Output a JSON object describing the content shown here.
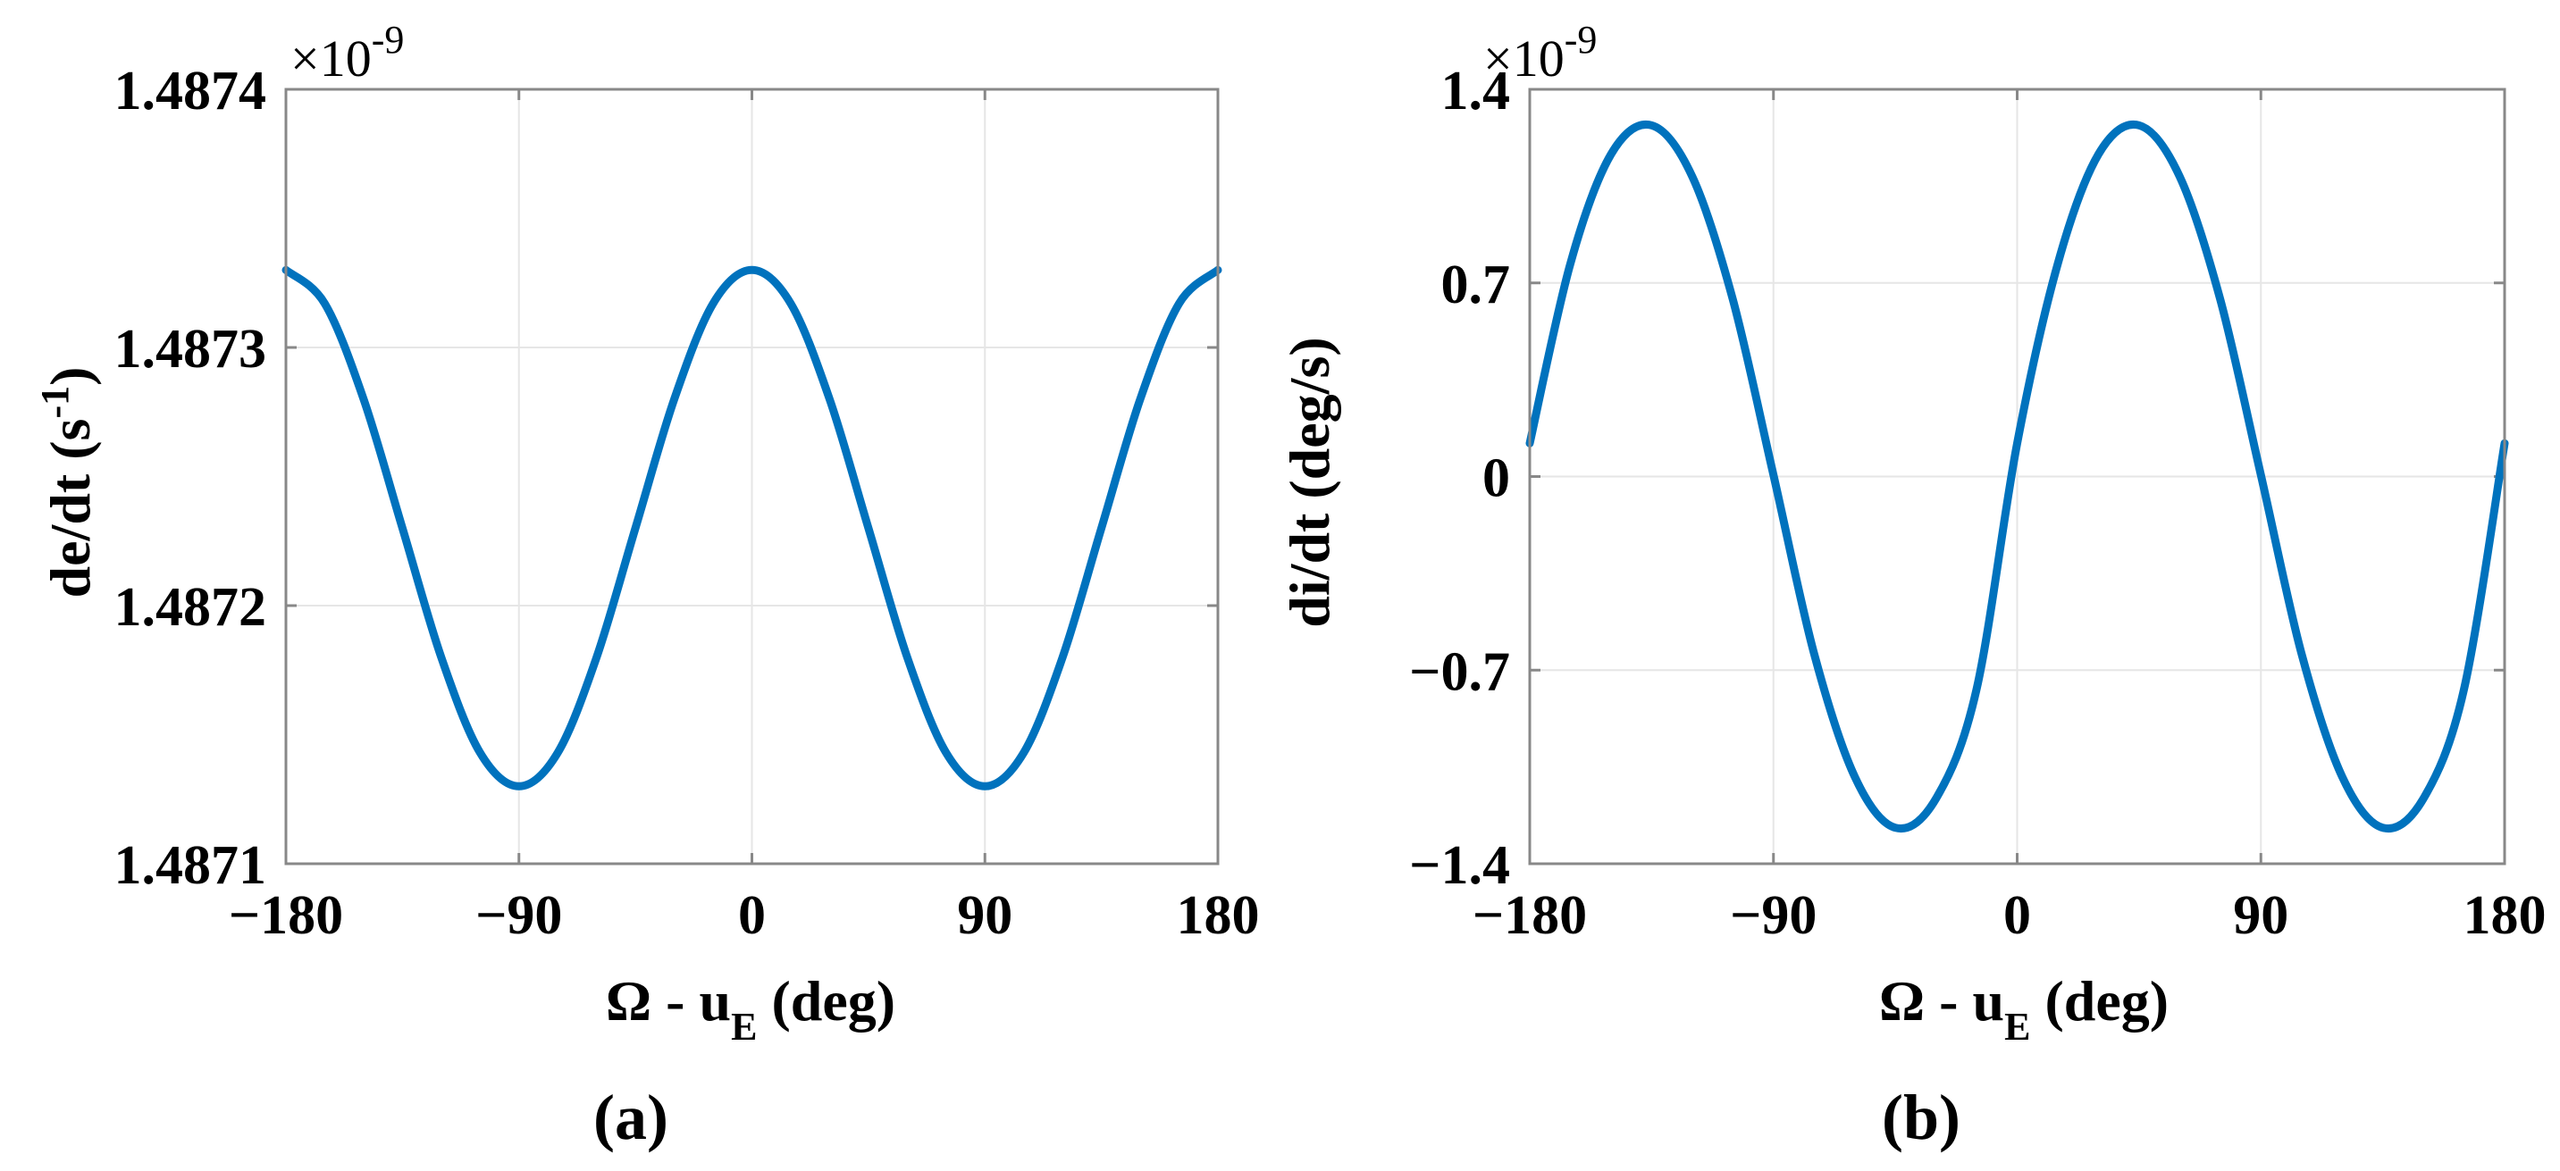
{
  "chart_data": [
    {
      "id": "a",
      "type": "line",
      "panel_label": "(a)",
      "ylabel_main": "de/dt (s",
      "ylabel_sup": "-1",
      "ylabel_close": ")",
      "xlabel_main": "Ω - u",
      "xlabel_sub": "E",
      "xlabel_close": " (deg)",
      "multiplier_base": "×10",
      "multiplier_exp": "-9",
      "xlim": [
        -180,
        180
      ],
      "ylim": [
        1.4871,
        1.4874
      ],
      "xticks": [
        -180,
        -90,
        0,
        90,
        180
      ],
      "xtick_labels": [
        "−180",
        "−90",
        "0",
        "90",
        "180"
      ],
      "yticks": [
        1.4871,
        1.4872,
        1.4873,
        1.4874
      ],
      "ytick_labels": [
        "1.4871",
        "1.4872",
        "1.4873",
        "1.4874"
      ],
      "grid": true,
      "series": [
        {
          "name": "de/dt",
          "color": "#0072BD",
          "x": [
            -180,
            -165,
            -150,
            -135,
            -120,
            -105,
            -90,
            -75,
            -60,
            -45,
            -30,
            -15,
            0,
            15,
            30,
            45,
            60,
            75,
            90,
            105,
            120,
            135,
            150,
            165,
            180
          ],
          "y": [
            1.48733,
            1.487317,
            1.48728,
            1.48723,
            1.48718,
            1.487143,
            1.48713,
            1.487143,
            1.48718,
            1.48723,
            1.48728,
            1.487317,
            1.48733,
            1.487317,
            1.48728,
            1.48723,
            1.48718,
            1.487143,
            1.48713,
            1.487143,
            1.48718,
            1.48723,
            1.48728,
            1.487317,
            1.48733
          ]
        }
      ]
    },
    {
      "id": "b",
      "type": "line",
      "panel_label": "(b)",
      "ylabel_main": "di/dt (deg/s)",
      "xlabel_main": "Ω - u",
      "xlabel_sub": "E",
      "xlabel_close": " (deg)",
      "multiplier_base": "×10",
      "multiplier_exp": "-9",
      "xlim": [
        -180,
        180
      ],
      "ylim": [
        -1.4,
        1.4
      ],
      "xticks": [
        -180,
        -90,
        0,
        90,
        180
      ],
      "xtick_labels": [
        "−180",
        "−90",
        "0",
        "90",
        "180"
      ],
      "yticks": [
        -1.4,
        -0.7,
        0,
        0.7,
        1.4
      ],
      "ytick_labels": [
        "−1.4",
        "−0.7",
        "0",
        "0.7",
        "1.4"
      ],
      "grid": true,
      "series": [
        {
          "name": "di/dt",
          "color": "#0072BD",
          "x": [
            -180,
            -165,
            -150,
            -135,
            -120,
            -105,
            -90,
            -75,
            -60,
            -45,
            -30,
            -15,
            0,
            15,
            30,
            45,
            60,
            75,
            90,
            105,
            120,
            135,
            150,
            165,
            180
          ],
          "y": [
            0.12,
            0.77,
            1.165,
            1.27,
            1.085,
            0.64,
            0.005,
            -0.64,
            -1.085,
            -1.27,
            -1.165,
            -0.77,
            0.12,
            0.77,
            1.165,
            1.27,
            1.085,
            0.64,
            0.005,
            -0.64,
            -1.085,
            -1.27,
            -1.165,
            -0.77,
            0.12
          ]
        }
      ]
    }
  ]
}
